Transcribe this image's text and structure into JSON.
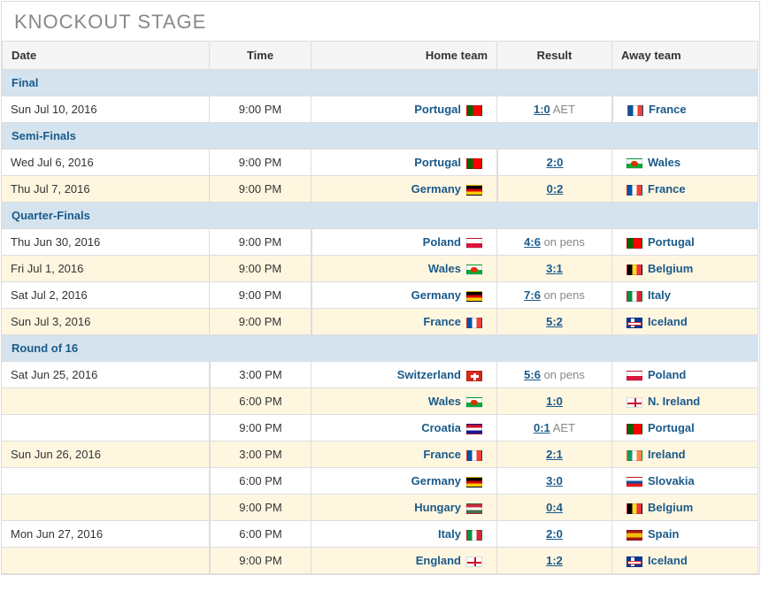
{
  "title": "KNOCKOUT STAGE",
  "columns": {
    "date": "Date",
    "time": "Time",
    "home": "Home team",
    "result": "Result",
    "away": "Away team"
  },
  "stages": [
    {
      "name": "Final",
      "matches": [
        {
          "date": "Sun Jul 10, 2016",
          "time": "9:00 PM",
          "home": "Portugal",
          "home_flag": "PT",
          "score": "1:0",
          "extra": "AET",
          "away": "France",
          "away_flag": "FR",
          "alt": false
        }
      ]
    },
    {
      "name": "Semi-Finals",
      "matches": [
        {
          "date": "Wed Jul 6, 2016",
          "time": "9:00 PM",
          "home": "Portugal",
          "home_flag": "PT",
          "score": "2:0",
          "extra": "",
          "away": "Wales",
          "away_flag": "WL",
          "alt": false
        },
        {
          "date": "Thu Jul 7, 2016",
          "time": "9:00 PM",
          "home": "Germany",
          "home_flag": "DE",
          "score": "0:2",
          "extra": "",
          "away": "France",
          "away_flag": "FR",
          "alt": true
        }
      ]
    },
    {
      "name": "Quarter-Finals",
      "matches": [
        {
          "date": "Thu Jun 30, 2016",
          "time": "9:00 PM",
          "home": "Poland",
          "home_flag": "PL",
          "score": "4:6",
          "extra": "on pens",
          "away": "Portugal",
          "away_flag": "PT",
          "alt": false
        },
        {
          "date": "Fri Jul 1, 2016",
          "time": "9:00 PM",
          "home": "Wales",
          "home_flag": "WL",
          "score": "3:1",
          "extra": "",
          "away": "Belgium",
          "away_flag": "BE",
          "alt": true
        },
        {
          "date": "Sat Jul 2, 2016",
          "time": "9:00 PM",
          "home": "Germany",
          "home_flag": "DE",
          "score": "7:6",
          "extra": "on pens",
          "away": "Italy",
          "away_flag": "IT",
          "alt": false
        },
        {
          "date": "Sun Jul 3, 2016",
          "time": "9:00 PM",
          "home": "France",
          "home_flag": "FR",
          "score": "5:2",
          "extra": "",
          "away": "Iceland",
          "away_flag": "IS",
          "alt": true
        }
      ]
    },
    {
      "name": "Round of 16",
      "matches": [
        {
          "date": "Sat Jun 25, 2016",
          "time": "3:00 PM",
          "home": "Switzerland",
          "home_flag": "CH",
          "score": "5:6",
          "extra": "on pens",
          "away": "Poland",
          "away_flag": "PL",
          "alt": false
        },
        {
          "date": "",
          "time": "6:00 PM",
          "home": "Wales",
          "home_flag": "WL",
          "score": "1:0",
          "extra": "",
          "away": "N. Ireland",
          "away_flag": "NI",
          "alt": true
        },
        {
          "date": "",
          "time": "9:00 PM",
          "home": "Croatia",
          "home_flag": "HR",
          "score": "0:1",
          "extra": "AET",
          "away": "Portugal",
          "away_flag": "PT",
          "alt": false
        },
        {
          "date": "Sun Jun 26, 2016",
          "time": "3:00 PM",
          "home": "France",
          "home_flag": "FR",
          "score": "2:1",
          "extra": "",
          "away": "Ireland",
          "away_flag": "IE",
          "alt": true
        },
        {
          "date": "",
          "time": "6:00 PM",
          "home": "Germany",
          "home_flag": "DE",
          "score": "3:0",
          "extra": "",
          "away": "Slovakia",
          "away_flag": "SK",
          "alt": false
        },
        {
          "date": "",
          "time": "9:00 PM",
          "home": "Hungary",
          "home_flag": "HU",
          "score": "0:4",
          "extra": "",
          "away": "Belgium",
          "away_flag": "BE",
          "alt": true
        },
        {
          "date": "Mon Jun 27, 2016",
          "time": "6:00 PM",
          "home": "Italy",
          "home_flag": "IT",
          "score": "2:0",
          "extra": "",
          "away": "Spain",
          "away_flag": "ES",
          "alt": false
        },
        {
          "date": "",
          "time": "9:00 PM",
          "home": "England",
          "home_flag": "EN",
          "score": "1:2",
          "extra": "",
          "away": "Iceland",
          "away_flag": "IS",
          "alt": true
        }
      ]
    }
  ],
  "colors": {
    "link": "#1a5a8a",
    "stage_bg": "#d4e3ee",
    "alt_bg": "#fff6e0",
    "header_bg": "#f5f5f5",
    "border": "#dddddd",
    "muted": "#888888"
  }
}
